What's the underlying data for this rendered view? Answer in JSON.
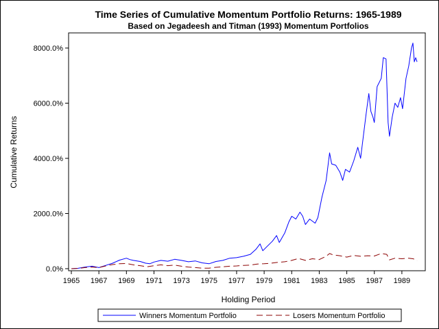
{
  "chart_data": {
    "type": "line",
    "title": "Time Series of Cumulative Momentum Portfolio Returns: 1965-1989",
    "subtitle": "Based on Jegadeesh and Titman (1993) Momentum Portfolios",
    "xlabel": "Holding Period",
    "ylabel": "Cumulative Returns",
    "xlim": [
      1965,
      1990.35
    ],
    "ylim": [
      0,
      8200
    ],
    "x_ticks": [
      1965,
      1967,
      1969,
      1971,
      1973,
      1975,
      1977,
      1979,
      1981,
      1983,
      1985,
      1987,
      1989
    ],
    "x_tick_labels": [
      "1965",
      "1967",
      "1969",
      "1971",
      "1973",
      "1975",
      "1977",
      "1979",
      "1981",
      "1983",
      "1985",
      "1987",
      "1989"
    ],
    "y_ticks": [
      0,
      2000,
      4000,
      6000,
      8000
    ],
    "y_tick_labels": [
      "0.0%",
      "2000.0%",
      "4000.0%",
      "6000.0%",
      "8000.0%"
    ],
    "grid": false,
    "legend_position": "bottom",
    "series": [
      {
        "name": "Winners Momentum Portfolio",
        "color": "#0000ff",
        "dash": "solid",
        "points": [
          [
            1965.0,
            0
          ],
          [
            1965.5,
            15
          ],
          [
            1966.0,
            60
          ],
          [
            1966.5,
            90
          ],
          [
            1967.0,
            40
          ],
          [
            1967.5,
            120
          ],
          [
            1968.0,
            200
          ],
          [
            1968.5,
            310
          ],
          [
            1969.0,
            380
          ],
          [
            1969.25,
            330
          ],
          [
            1969.5,
            300
          ],
          [
            1970.0,
            260
          ],
          [
            1970.4,
            200
          ],
          [
            1970.7,
            180
          ],
          [
            1971.0,
            240
          ],
          [
            1971.5,
            300
          ],
          [
            1972.0,
            270
          ],
          [
            1972.5,
            340
          ],
          [
            1973.0,
            300
          ],
          [
            1973.5,
            250
          ],
          [
            1974.0,
            280
          ],
          [
            1974.5,
            210
          ],
          [
            1975.0,
            180
          ],
          [
            1975.5,
            260
          ],
          [
            1976.0,
            300
          ],
          [
            1976.5,
            380
          ],
          [
            1977.0,
            400
          ],
          [
            1977.5,
            450
          ],
          [
            1978.0,
            520
          ],
          [
            1978.4,
            700
          ],
          [
            1978.7,
            900
          ],
          [
            1978.9,
            650
          ],
          [
            1979.2,
            800
          ],
          [
            1979.6,
            1000
          ],
          [
            1979.9,
            1200
          ],
          [
            1980.1,
            950
          ],
          [
            1980.5,
            1300
          ],
          [
            1980.8,
            1700
          ],
          [
            1981.0,
            1900
          ],
          [
            1981.3,
            1800
          ],
          [
            1981.6,
            2050
          ],
          [
            1981.8,
            1900
          ],
          [
            1982.0,
            1600
          ],
          [
            1982.3,
            1800
          ],
          [
            1982.7,
            1650
          ],
          [
            1982.9,
            1850
          ],
          [
            1983.2,
            2600
          ],
          [
            1983.5,
            3200
          ],
          [
            1983.75,
            4200
          ],
          [
            1983.9,
            3800
          ],
          [
            1984.2,
            3750
          ],
          [
            1984.5,
            3500
          ],
          [
            1984.7,
            3200
          ],
          [
            1984.9,
            3600
          ],
          [
            1985.2,
            3500
          ],
          [
            1985.5,
            3900
          ],
          [
            1985.8,
            4400
          ],
          [
            1986.0,
            4000
          ],
          [
            1986.2,
            4800
          ],
          [
            1986.4,
            5600
          ],
          [
            1986.6,
            6350
          ],
          [
            1986.75,
            5700
          ],
          [
            1986.9,
            5500
          ],
          [
            1987.0,
            5300
          ],
          [
            1987.2,
            6600
          ],
          [
            1987.5,
            6900
          ],
          [
            1987.65,
            7650
          ],
          [
            1987.85,
            7600
          ],
          [
            1988.0,
            5300
          ],
          [
            1988.1,
            4800
          ],
          [
            1988.3,
            5500
          ],
          [
            1988.5,
            6000
          ],
          [
            1988.7,
            5850
          ],
          [
            1988.9,
            6200
          ],
          [
            1989.05,
            5800
          ],
          [
            1989.3,
            6900
          ],
          [
            1989.5,
            7350
          ],
          [
            1989.7,
            8000
          ],
          [
            1989.8,
            8180
          ],
          [
            1989.9,
            7500
          ],
          [
            1990.0,
            7650
          ],
          [
            1990.1,
            7500
          ]
        ]
      },
      {
        "name": "Losers Momentum Portfolio",
        "color": "#8b0000",
        "dash": "dashed",
        "points": [
          [
            1965.0,
            0
          ],
          [
            1965.5,
            10
          ],
          [
            1966.0,
            40
          ],
          [
            1966.5,
            60
          ],
          [
            1967.0,
            40
          ],
          [
            1967.5,
            100
          ],
          [
            1968.0,
            150
          ],
          [
            1968.5,
            180
          ],
          [
            1969.0,
            190
          ],
          [
            1969.5,
            140
          ],
          [
            1970.0,
            110
          ],
          [
            1970.5,
            70
          ],
          [
            1971.0,
            110
          ],
          [
            1971.5,
            140
          ],
          [
            1972.0,
            110
          ],
          [
            1972.5,
            130
          ],
          [
            1973.0,
            90
          ],
          [
            1973.5,
            60
          ],
          [
            1974.0,
            40
          ],
          [
            1974.5,
            20
          ],
          [
            1975.0,
            20
          ],
          [
            1975.5,
            50
          ],
          [
            1976.0,
            70
          ],
          [
            1976.5,
            90
          ],
          [
            1977.0,
            100
          ],
          [
            1977.5,
            120
          ],
          [
            1978.0,
            130
          ],
          [
            1978.5,
            170
          ],
          [
            1979.0,
            180
          ],
          [
            1979.5,
            200
          ],
          [
            1980.0,
            230
          ],
          [
            1980.5,
            250
          ],
          [
            1981.0,
            300
          ],
          [
            1981.5,
            370
          ],
          [
            1982.0,
            300
          ],
          [
            1982.5,
            360
          ],
          [
            1983.0,
            330
          ],
          [
            1983.5,
            450
          ],
          [
            1983.75,
            550
          ],
          [
            1984.0,
            500
          ],
          [
            1984.5,
            470
          ],
          [
            1985.0,
            420
          ],
          [
            1985.5,
            480
          ],
          [
            1986.0,
            450
          ],
          [
            1986.5,
            470
          ],
          [
            1987.0,
            460
          ],
          [
            1987.5,
            550
          ],
          [
            1987.9,
            520
          ],
          [
            1988.1,
            320
          ],
          [
            1988.5,
            380
          ],
          [
            1989.0,
            360
          ],
          [
            1989.5,
            380
          ],
          [
            1989.8,
            360
          ],
          [
            1990.0,
            330
          ],
          [
            1990.1,
            280
          ]
        ]
      }
    ]
  }
}
